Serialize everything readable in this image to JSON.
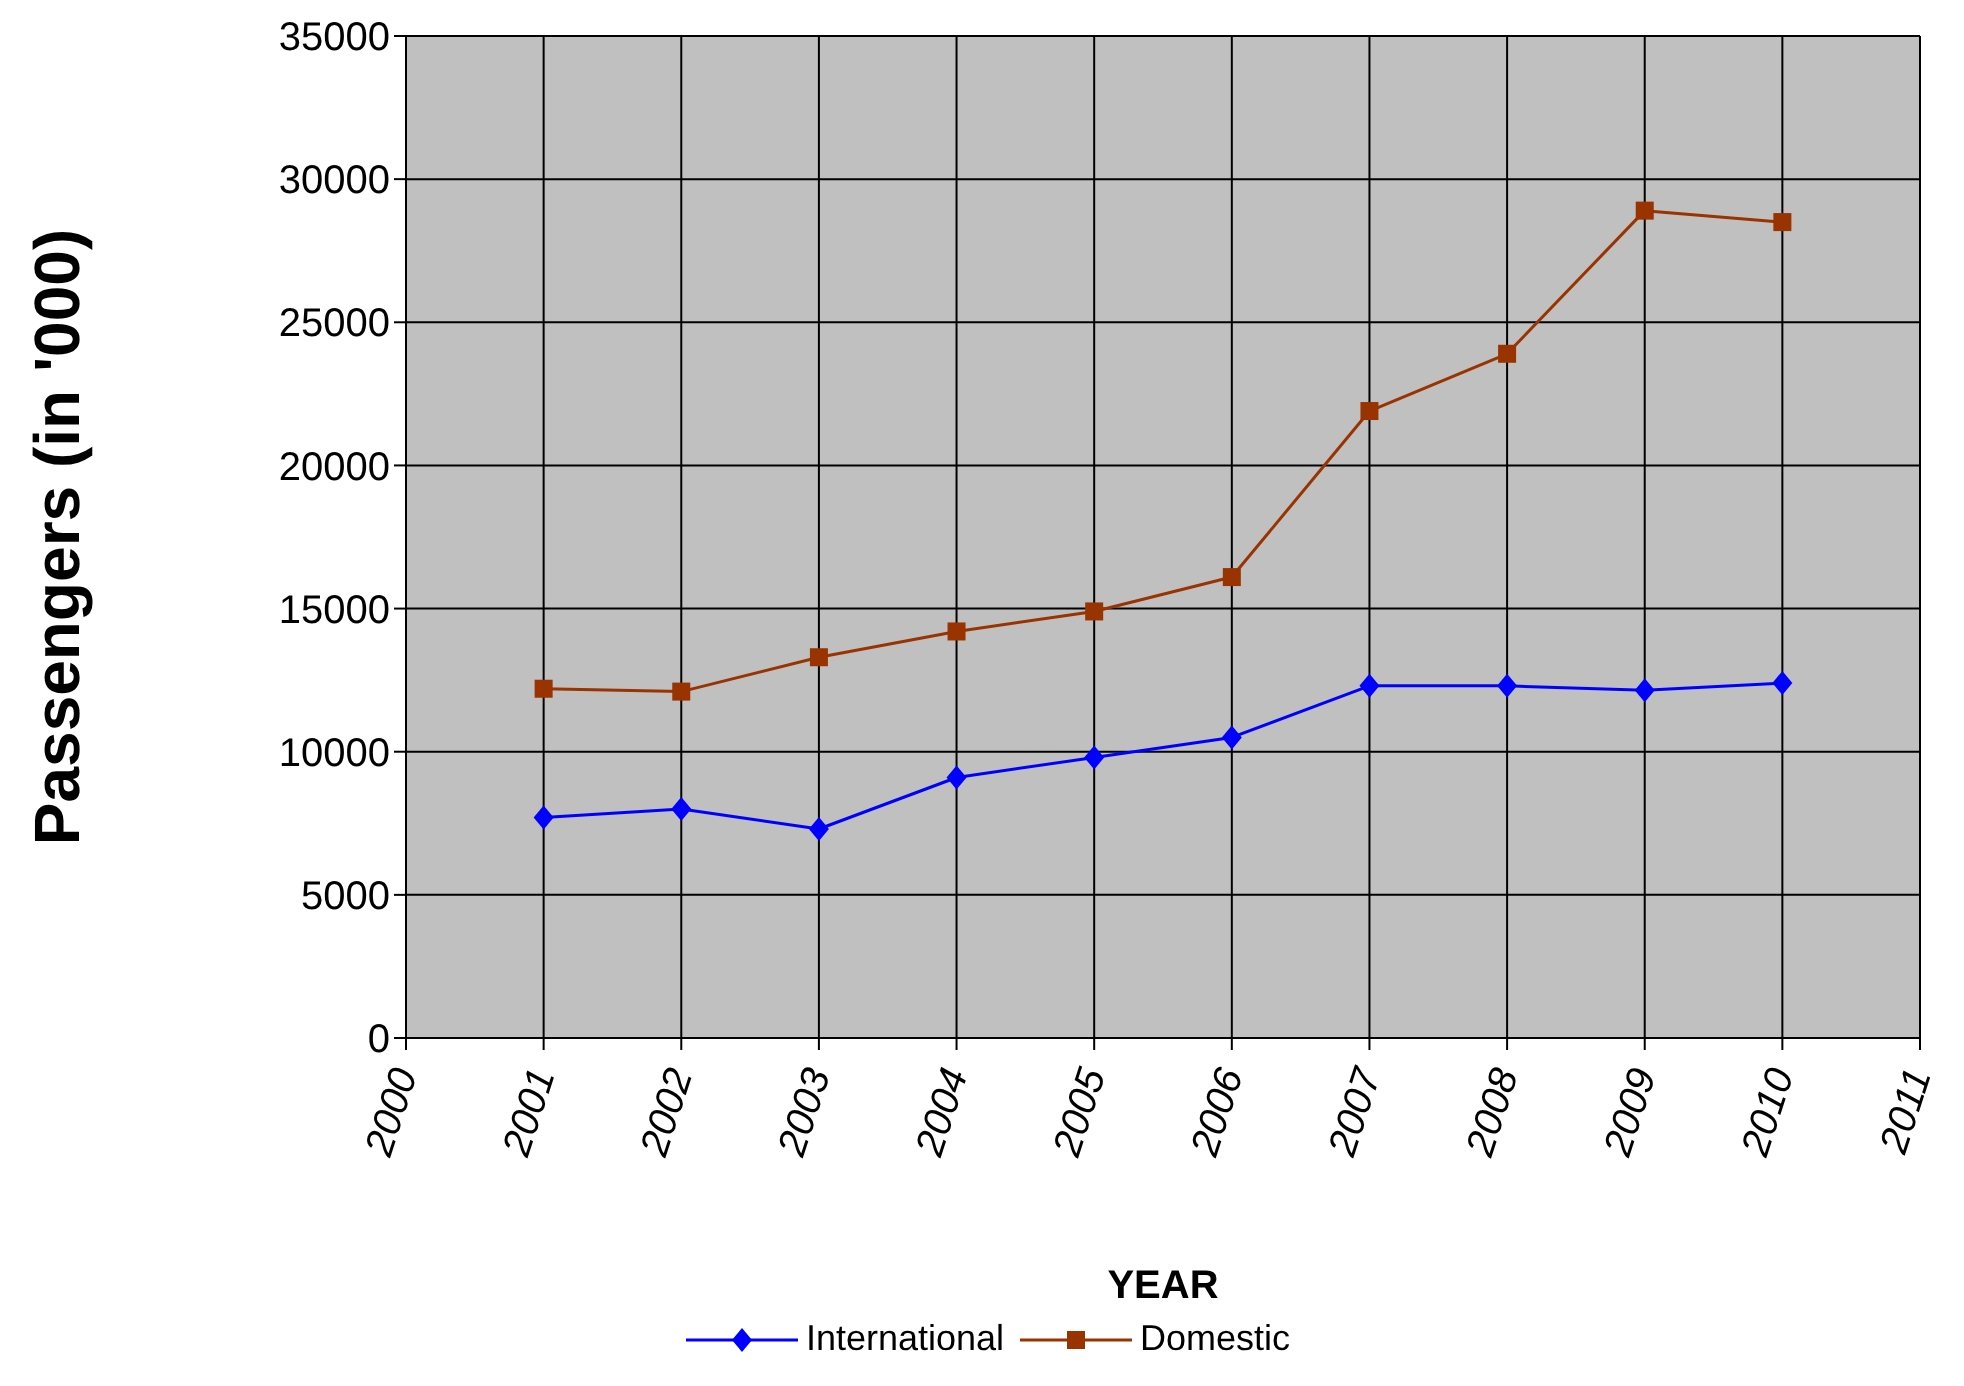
{
  "chart_data": {
    "type": "line",
    "xlabel": "YEAR",
    "ylabel": "Passengers (in '000)",
    "x": [
      2001,
      2002,
      2003,
      2004,
      2005,
      2006,
      2007,
      2008,
      2009,
      2010
    ],
    "series": [
      {
        "name": "International",
        "color": "#0000ff",
        "marker": "diamond",
        "values": [
          7700,
          8000,
          7300,
          9100,
          9800,
          10500,
          12300,
          12300,
          12150,
          12400
        ]
      },
      {
        "name": "Domestic",
        "color": "#993300",
        "marker": "square",
        "values": [
          12200,
          12100,
          13300,
          14200,
          14900,
          16100,
          21900,
          23900,
          28900,
          28500
        ]
      }
    ],
    "xlim": [
      2000,
      2011
    ],
    "xticks": [
      2000,
      2001,
      2002,
      2003,
      2004,
      2005,
      2006,
      2007,
      2008,
      2009,
      2010,
      2011
    ],
    "ylim": [
      0,
      35000
    ],
    "yticks": [
      0,
      5000,
      10000,
      15000,
      20000,
      25000,
      30000,
      35000
    ],
    "grid": true,
    "legend": "bottom"
  }
}
